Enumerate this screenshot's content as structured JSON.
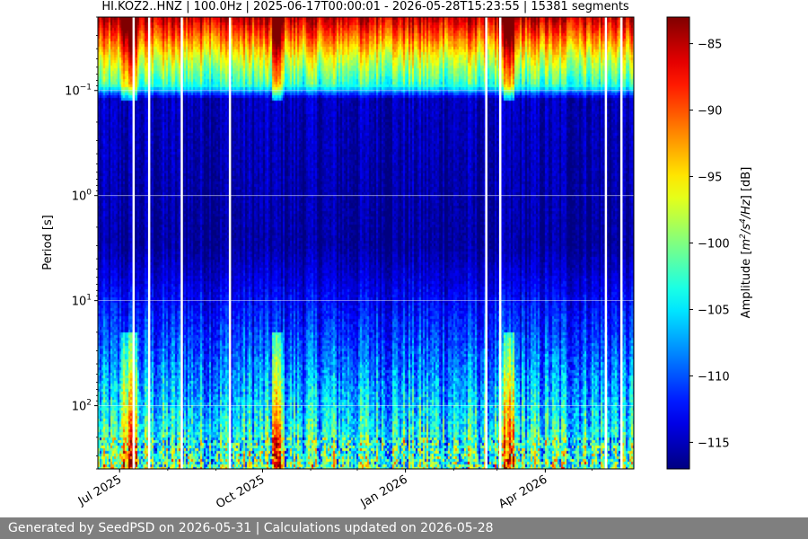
{
  "chart_data": {
    "type": "heatmap",
    "title": "HI.KOZ2..HNZ | 100.0Hz | 2025-06-17T00:00:01 - 2026-05-28T15:23:55 | 15381 segments",
    "xlabel": "",
    "ylabel": "Period [s]",
    "x_range": [
      "2025-06-17",
      "2026-05-28"
    ],
    "x_ticks": [
      {
        "date": "2025-07-01",
        "label": "Jul 2025"
      },
      {
        "date": "2025-10-01",
        "label": "Oct 2025"
      },
      {
        "date": "2026-01-01",
        "label": "Jan 2026"
      },
      {
        "date": "2026-04-01",
        "label": "Apr 2026"
      }
    ],
    "y_scale": "log",
    "y_inverted": true,
    "y_range": [
      0.02,
      400
    ],
    "y_ticks": [
      {
        "value": 0.1,
        "base": "10",
        "exp": "−1"
      },
      {
        "value": 1,
        "base": "10",
        "exp": "0"
      },
      {
        "value": 10,
        "base": "10",
        "exp": "1"
      },
      {
        "value": 100,
        "base": "10",
        "exp": "2"
      }
    ],
    "grid": true,
    "colorbar": {
      "label": "Amplitude [m²/s⁴/Hz] [dB]",
      "label_text": "Amplitude [",
      "label_m": "m",
      "label_sup2": "2",
      "label_s": "/s",
      "label_sup4": "4",
      "label_hz": "/Hz",
      "label_end": "] [dB]",
      "min": -117,
      "max": -83,
      "ticks": [
        -85,
        -90,
        -95,
        -100,
        -105,
        -110,
        -115
      ],
      "tick_labels": [
        "−85",
        "−90",
        "−95",
        "−100",
        "−105",
        "−110",
        "−115"
      ],
      "colormap": "jet"
    },
    "typical_profile_db": [
      {
        "period": 0.02,
        "db": -85
      },
      {
        "period": 0.05,
        "db": -97
      },
      {
        "period": 0.09,
        "db": -103
      },
      {
        "period": 0.12,
        "db": -115
      },
      {
        "period": 3,
        "db": -116
      },
      {
        "period": 30,
        "db": -110
      },
      {
        "period": 100,
        "db": -106
      },
      {
        "period": 400,
        "db": -101
      }
    ],
    "high_energy_periods": [
      {
        "start": "2025-07-02",
        "end": "2025-07-12"
      },
      {
        "start": "2025-10-07",
        "end": "2025-10-14"
      },
      {
        "start": "2026-03-05",
        "end": "2026-03-12"
      }
    ],
    "gaps": [
      "2025-07-10",
      "2025-07-20",
      "2025-08-10",
      "2025-09-10",
      "2026-02-22",
      "2026-03-03",
      "2026-05-10",
      "2026-05-20"
    ]
  },
  "footer": {
    "text": "Generated by SeedPSD on 2026-05-31 | Calculations updated on 2026-05-28"
  }
}
